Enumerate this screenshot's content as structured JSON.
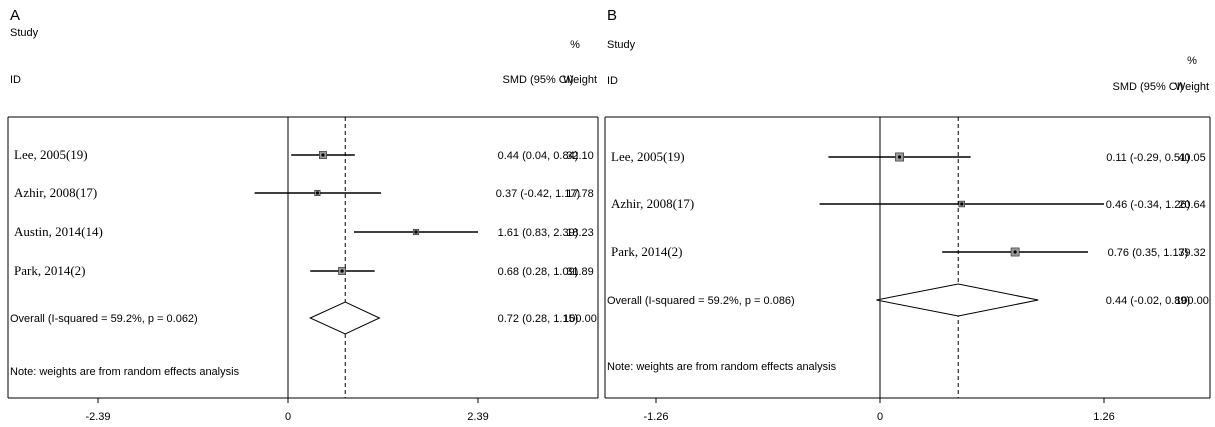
{
  "chart_data": [
    {
      "type": "forest",
      "panel_label": "A",
      "header": {
        "study": "Study",
        "id": "ID",
        "effect": "SMD (95% CI)",
        "pct": "%",
        "weight": "Weight"
      },
      "studies": [
        {
          "label": "Lee, 2005(19)",
          "est": 0.44,
          "lo": 0.04,
          "hi": 0.84,
          "ci_text": "0.44 (0.04, 0.84)",
          "weight": "32.10"
        },
        {
          "label": "Azhir, 2008(17)",
          "est": 0.37,
          "lo": -0.42,
          "hi": 1.17,
          "ci_text": "0.37 (-0.42, 1.17)",
          "weight": "17.78"
        },
        {
          "label": "Austin, 2014(14)",
          "est": 1.61,
          "lo": 0.83,
          "hi": 2.39,
          "ci_text": "1.61 (0.83, 2.39)",
          "weight": "18.23"
        },
        {
          "label": "Park, 2014(2)",
          "est": 0.68,
          "lo": 0.28,
          "hi": 1.09,
          "ci_text": "0.68 (0.28, 1.09)",
          "weight": "31.89"
        }
      ],
      "overall": {
        "label": "Overall  (I-squared = 59.2%, p = 0.062)",
        "est": 0.72,
        "lo": 0.28,
        "hi": 1.15,
        "ci_text": "0.72 (0.28, 1.15)",
        "weight": "100.00"
      },
      "note": "Note: weights are from random effects analysis",
      "x_ticks": [
        {
          "value": -2.39,
          "label": "-2.39"
        },
        {
          "value": 0,
          "label": "0"
        },
        {
          "value": 2.39,
          "label": "2.39"
        }
      ]
    },
    {
      "type": "forest",
      "panel_label": "B",
      "header": {
        "study": "Study",
        "id": "ID",
        "effect": "SMD (95% CI)",
        "pct": "%",
        "weight": "Weight"
      },
      "studies": [
        {
          "label": "Lee, 2005(19)",
          "est": 0.11,
          "lo": -0.29,
          "hi": 0.51,
          "ci_text": "0.11 (-0.29, 0.51)",
          "weight": "40.05"
        },
        {
          "label": "Azhir, 2008(17)",
          "est": 0.46,
          "lo": -0.34,
          "hi": 1.26,
          "ci_text": "0.46 (-0.34, 1.26)",
          "weight": "20.64"
        },
        {
          "label": "Park, 2014(2)",
          "est": 0.76,
          "lo": 0.35,
          "hi": 1.17,
          "ci_text": "0.76 (0.35, 1.17)",
          "weight": "39.32"
        }
      ],
      "overall": {
        "label": "Overall  (I-squared = 59.2%, p = 0.086)",
        "est": 0.44,
        "lo": -0.02,
        "hi": 0.89,
        "ci_text": "0.44 (-0.02, 0.89)",
        "weight": "100.00"
      },
      "note": "Note: weights are from random effects analysis",
      "x_ticks": [
        {
          "value": -1.26,
          "label": "-1.26"
        },
        {
          "value": 0,
          "label": "0"
        },
        {
          "value": 1.26,
          "label": "1.26"
        }
      ]
    }
  ]
}
